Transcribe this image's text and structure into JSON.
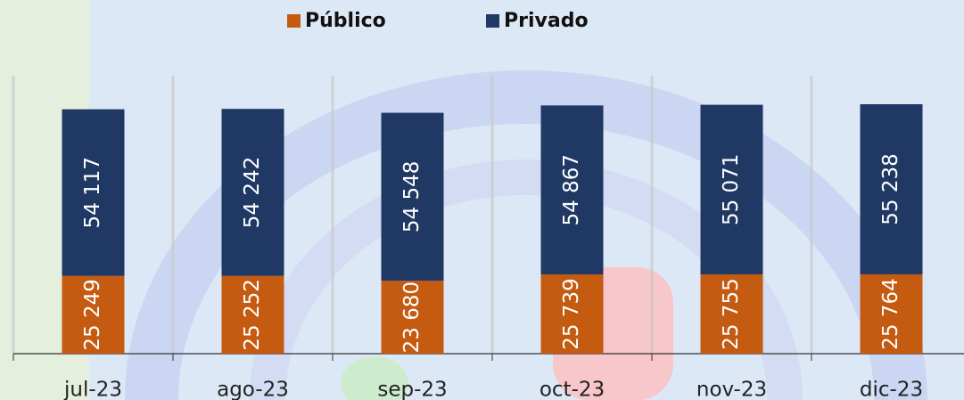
{
  "chart_data": {
    "type": "stacked_bar",
    "categories": [
      "jul-23",
      "ago-23",
      "sep-23",
      "oct-23",
      "nov-23",
      "dic-23"
    ],
    "series": [
      {
        "name": "Público",
        "color": "#c55a11",
        "values": [
          25249,
          25252,
          23680,
          25739,
          25755,
          25764
        ],
        "value_labels": [
          "25 249",
          "25 252",
          "23 680",
          "25 739",
          "25 755",
          "25 764"
        ]
      },
      {
        "name": "Privado",
        "color": "#203864",
        "values": [
          54117,
          54242,
          54548,
          54867,
          55071,
          55238
        ],
        "value_labels": [
          "54 117",
          "54 242",
          "54 548",
          "54 867",
          "55 071",
          "55 238"
        ]
      }
    ]
  }
}
